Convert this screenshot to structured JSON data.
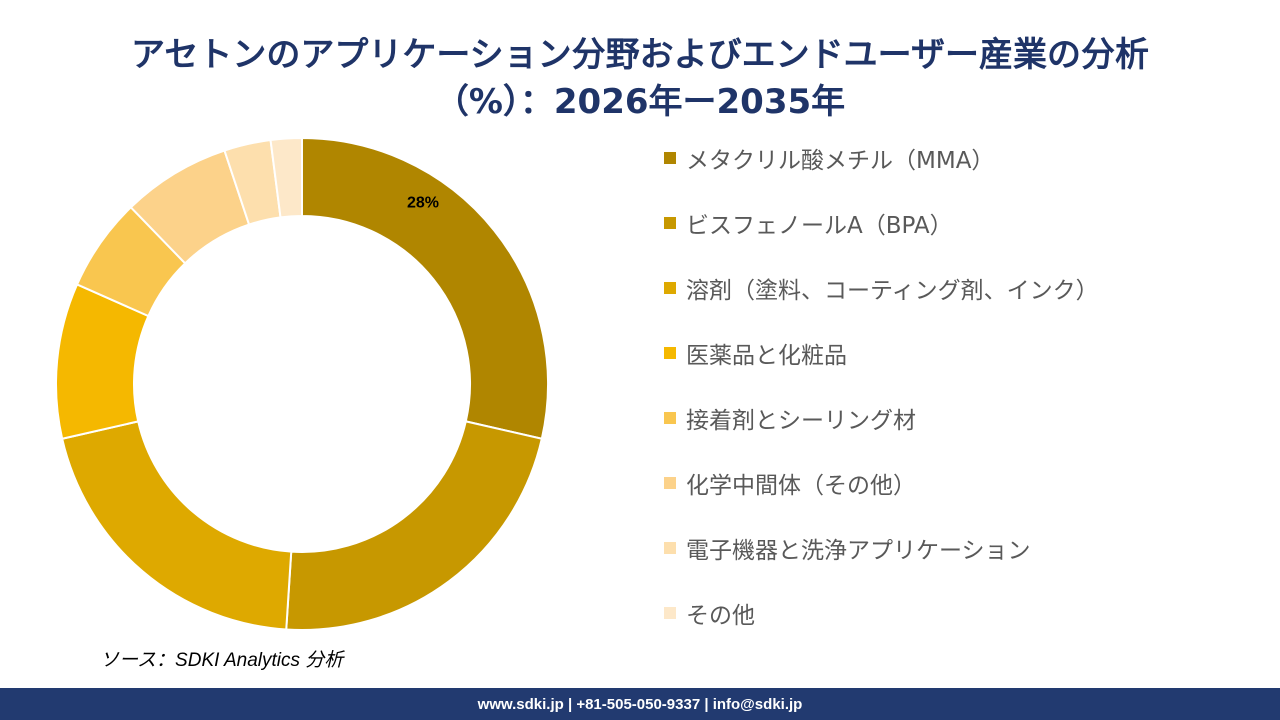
{
  "chart_data": {
    "type": "pie",
    "title_line1": "アセトンのアプリケーション分野およびエンドユーザー産業の分析",
    "title_line2": "（%）：2026年ー2035年",
    "categories": [
      "メタクリル酸メチル（MMA）",
      "ビスフェノールA（BPA）",
      "溶剤（塗料、コーティング剤、インク）",
      "医薬品と化粧品",
      "接着剤とシーリング材",
      "化学中間体（その他）",
      "電子機器と洗浄アプリケーション",
      "その他"
    ],
    "values": [
      28,
      22,
      20,
      10,
      6,
      7,
      3,
      2
    ],
    "colors": [
      "#b08600",
      "#c79800",
      "#dea900",
      "#f5b800",
      "#f9c64f",
      "#fcd28a",
      "#fddfad",
      "#fde8c9"
    ],
    "data_labels": [
      "28%",
      "",
      "",
      "",
      "",
      "",
      "",
      ""
    ],
    "legend_position": "right"
  },
  "source": "ソース：SDKI Analytics 分析",
  "footer": "www.sdki.jp | +81-505-050-9337 | info@sdki.jp"
}
